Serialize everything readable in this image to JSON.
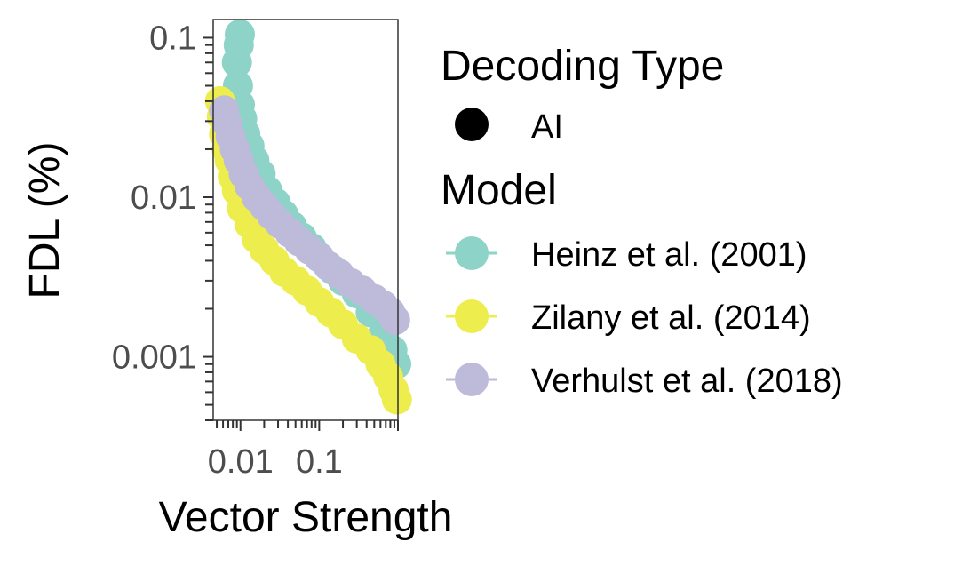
{
  "chart_data": {
    "type": "scatter",
    "xlabel": "Vector Strength",
    "ylabel": "FDL (%)",
    "x_scale": "log",
    "y_scale": "log",
    "xlim": [
      0.0045,
      1.0
    ],
    "ylim": [
      0.0004,
      0.13
    ],
    "x_ticks": [
      {
        "value": 0.01,
        "label": "0.01"
      },
      {
        "value": 0.1,
        "label": "0.1"
      }
    ],
    "y_ticks": [
      {
        "value": 0.001,
        "label": "0.001"
      },
      {
        "value": 0.01,
        "label": "0.01"
      },
      {
        "value": 0.1,
        "label": "0.1"
      }
    ],
    "grid": false,
    "legend_placement": "right",
    "legend": {
      "shape_title": "Decoding Type",
      "shape_entries": [
        {
          "label": "AI",
          "color": "#000000"
        }
      ],
      "color_title": "Model"
    },
    "series": [
      {
        "name": "Heinz et al. (2001)",
        "color": "#8dd3c7",
        "x": [
          0.0098,
          0.0095,
          0.009,
          0.0093,
          0.0098,
          0.0105,
          0.0115,
          0.013,
          0.015,
          0.018,
          0.022,
          0.028,
          0.035,
          0.045,
          0.06,
          0.08,
          0.1,
          0.15,
          0.2,
          0.3,
          0.45,
          0.65,
          0.85,
          0.95
        ],
        "y": [
          0.105,
          0.09,
          0.07,
          0.05,
          0.038,
          0.031,
          0.025,
          0.021,
          0.017,
          0.014,
          0.011,
          0.0092,
          0.0078,
          0.0066,
          0.0056,
          0.0048,
          0.0042,
          0.0035,
          0.003,
          0.0025,
          0.0019,
          0.0014,
          0.0011,
          0.0009
        ]
      },
      {
        "name": "Zilany et al. (2014)",
        "color": "#eded4e",
        "x": [
          0.0055,
          0.0058,
          0.0062,
          0.0067,
          0.0073,
          0.008,
          0.009,
          0.0105,
          0.013,
          0.016,
          0.02,
          0.027,
          0.036,
          0.05,
          0.07,
          0.1,
          0.14,
          0.2,
          0.3,
          0.45,
          0.6,
          0.75,
          0.88,
          0.97
        ],
        "y": [
          0.04,
          0.032,
          0.025,
          0.02,
          0.017,
          0.0135,
          0.011,
          0.0085,
          0.0068,
          0.0055,
          0.0047,
          0.004,
          0.0034,
          0.003,
          0.0026,
          0.0022,
          0.0019,
          0.0016,
          0.0013,
          0.0011,
          0.0009,
          0.00075,
          0.00062,
          0.00054
        ]
      },
      {
        "name": "Verhulst et al. (2018)",
        "color": "#bebada",
        "x": [
          0.0062,
          0.0068,
          0.0075,
          0.0085,
          0.0095,
          0.011,
          0.013,
          0.016,
          0.02,
          0.025,
          0.032,
          0.042,
          0.055,
          0.075,
          0.1,
          0.13,
          0.18,
          0.25,
          0.35,
          0.5,
          0.65,
          0.8,
          0.92
        ],
        "y": [
          0.035,
          0.029,
          0.024,
          0.02,
          0.017,
          0.014,
          0.0118,
          0.01,
          0.0088,
          0.0077,
          0.0068,
          0.006,
          0.0053,
          0.0047,
          0.0042,
          0.0037,
          0.0033,
          0.0029,
          0.0026,
          0.0023,
          0.0021,
          0.0019,
          0.0017
        ]
      }
    ]
  }
}
